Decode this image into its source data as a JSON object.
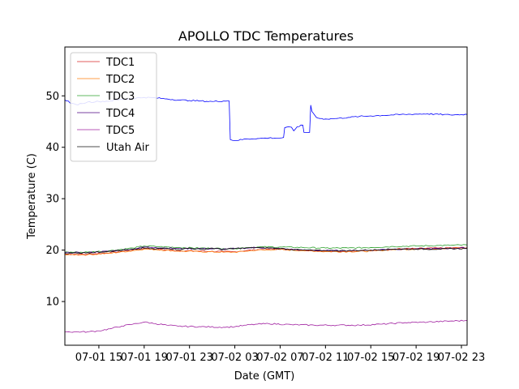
{
  "chart_data": {
    "type": "line",
    "title": "APOLLO TDC Temperatures",
    "xlabel": "Date (GMT)",
    "ylabel": "Temperature (C)",
    "xlim_hours": [
      12.0,
      47.5
    ],
    "ylim": [
      1.5,
      59.5
    ],
    "grid": false,
    "legend_position": "top-left",
    "x_ticks": [
      {
        "hours": 15,
        "label": "07-01 15"
      },
      {
        "hours": 19,
        "label": "07-01 19"
      },
      {
        "hours": 23,
        "label": "07-01 23"
      },
      {
        "hours": 27,
        "label": "07-02 03"
      },
      {
        "hours": 31,
        "label": "07-02 07"
      },
      {
        "hours": 35,
        "label": "07-02 11"
      },
      {
        "hours": 39,
        "label": "07-02 15"
      },
      {
        "hours": 43,
        "label": "07-02 19"
      },
      {
        "hours": 47,
        "label": "07-02 23"
      }
    ],
    "y_ticks": [
      {
        "value": 10,
        "label": "10"
      },
      {
        "value": 20,
        "label": "20"
      },
      {
        "value": 30,
        "label": "30"
      },
      {
        "value": 40,
        "label": "40"
      },
      {
        "value": 50,
        "label": "50"
      }
    ],
    "series": [
      {
        "name": "TDC1",
        "color": "#d62728",
        "points": [
          [
            12.0,
            19.2
          ],
          [
            14.0,
            19.2
          ],
          [
            16.0,
            19.5
          ],
          [
            18.0,
            20.0
          ],
          [
            19.0,
            20.3
          ],
          [
            20.0,
            20.2
          ],
          [
            22.0,
            19.9
          ],
          [
            24.0,
            19.8
          ],
          [
            26.0,
            19.7
          ],
          [
            27.0,
            19.7
          ],
          [
            28.0,
            19.9
          ],
          [
            29.0,
            20.1
          ],
          [
            31.0,
            20.2
          ],
          [
            33.0,
            20.0
          ],
          [
            35.0,
            19.8
          ],
          [
            37.0,
            19.8
          ],
          [
            39.0,
            19.9
          ],
          [
            41.0,
            20.2
          ],
          [
            43.0,
            20.3
          ],
          [
            45.0,
            20.4
          ],
          [
            47.5,
            20.5
          ]
        ]
      },
      {
        "name": "TDC2",
        "color": "#ff7f0e",
        "points": [
          [
            12.0,
            19.1
          ],
          [
            14.0,
            19.1
          ],
          [
            16.0,
            19.4
          ],
          [
            18.0,
            19.9
          ],
          [
            19.0,
            20.2
          ],
          [
            20.0,
            20.1
          ],
          [
            22.0,
            19.8
          ],
          [
            24.0,
            19.7
          ],
          [
            26.0,
            19.6
          ],
          [
            27.0,
            19.6
          ],
          [
            28.0,
            19.8
          ],
          [
            29.0,
            20.0
          ],
          [
            31.0,
            20.1
          ],
          [
            33.0,
            19.9
          ],
          [
            35.0,
            19.7
          ],
          [
            37.0,
            19.7
          ],
          [
            39.0,
            19.8
          ],
          [
            41.0,
            20.1
          ],
          [
            43.0,
            20.2
          ],
          [
            45.0,
            20.3
          ],
          [
            47.5,
            20.4
          ]
        ]
      },
      {
        "name": "TDC3",
        "color": "#2ca02c",
        "points": [
          [
            12.0,
            19.6
          ],
          [
            14.0,
            19.6
          ],
          [
            16.0,
            19.9
          ],
          [
            18.0,
            20.4
          ],
          [
            19.0,
            20.8
          ],
          [
            20.0,
            20.7
          ],
          [
            22.0,
            20.5
          ],
          [
            24.0,
            20.4
          ],
          [
            26.0,
            20.3
          ],
          [
            27.0,
            20.3
          ],
          [
            28.0,
            20.5
          ],
          [
            29.0,
            20.6
          ],
          [
            31.0,
            20.6
          ],
          [
            33.0,
            20.5
          ],
          [
            35.0,
            20.4
          ],
          [
            37.0,
            20.4
          ],
          [
            39.0,
            20.5
          ],
          [
            41.0,
            20.7
          ],
          [
            43.0,
            20.8
          ],
          [
            45.0,
            20.9
          ],
          [
            47.5,
            21.0
          ]
        ]
      },
      {
        "name": "TDC4",
        "color": "#4b0082",
        "points": [
          [
            12.0,
            19.5
          ],
          [
            14.0,
            19.5
          ],
          [
            16.0,
            19.8
          ],
          [
            18.0,
            20.2
          ],
          [
            19.0,
            20.6
          ],
          [
            20.0,
            20.5
          ],
          [
            22.0,
            20.3
          ],
          [
            24.0,
            20.3
          ],
          [
            26.0,
            20.2
          ],
          [
            27.0,
            20.3
          ],
          [
            28.0,
            20.4
          ],
          [
            29.0,
            20.5
          ],
          [
            31.0,
            20.3
          ],
          [
            33.0,
            20.0
          ],
          [
            35.0,
            19.9
          ],
          [
            37.0,
            19.9
          ],
          [
            39.0,
            20.0
          ],
          [
            41.0,
            20.2
          ],
          [
            43.0,
            20.2
          ],
          [
            45.0,
            20.3
          ],
          [
            47.5,
            20.4
          ]
        ]
      },
      {
        "name": "TDC5",
        "color": "#a020a0",
        "points": [
          [
            12.0,
            4.1
          ],
          [
            14.0,
            4.1
          ],
          [
            15.0,
            4.3
          ],
          [
            16.0,
            4.7
          ],
          [
            17.0,
            5.2
          ],
          [
            18.0,
            5.6
          ],
          [
            19.0,
            6.0
          ],
          [
            20.0,
            5.7
          ],
          [
            21.0,
            5.4
          ],
          [
            22.0,
            5.2
          ],
          [
            24.0,
            5.1
          ],
          [
            26.0,
            5.0
          ],
          [
            27.0,
            5.1
          ],
          [
            28.0,
            5.4
          ],
          [
            29.0,
            5.6
          ],
          [
            30.0,
            5.7
          ],
          [
            32.0,
            5.5
          ],
          [
            34.0,
            5.4
          ],
          [
            36.0,
            5.4
          ],
          [
            38.0,
            5.4
          ],
          [
            40.0,
            5.6
          ],
          [
            42.0,
            5.9
          ],
          [
            44.0,
            6.0
          ],
          [
            46.0,
            6.2
          ],
          [
            47.5,
            6.3
          ]
        ]
      },
      {
        "name": "Utah Air",
        "color": "#111111",
        "points": [
          [
            12.0,
            19.4
          ],
          [
            14.0,
            19.5
          ],
          [
            16.0,
            19.8
          ],
          [
            18.0,
            20.1
          ],
          [
            19.0,
            20.4
          ],
          [
            20.0,
            20.2
          ],
          [
            21.0,
            20.4
          ],
          [
            22.0,
            20.1
          ],
          [
            23.0,
            20.4
          ],
          [
            24.0,
            20.1
          ],
          [
            25.0,
            20.4
          ],
          [
            26.0,
            20.1
          ],
          [
            27.0,
            20.3
          ],
          [
            28.0,
            20.4
          ],
          [
            29.0,
            20.5
          ],
          [
            31.0,
            20.3
          ],
          [
            33.0,
            20.0
          ],
          [
            35.0,
            19.9
          ],
          [
            37.0,
            19.9
          ],
          [
            39.0,
            20.0
          ],
          [
            41.0,
            20.2
          ],
          [
            43.0,
            20.2
          ],
          [
            45.0,
            20.2
          ],
          [
            47.5,
            20.3
          ]
        ]
      },
      {
        "name": "Blue (unlabeled)",
        "color": "#0000ff",
        "points": [
          [
            12.0,
            49.2
          ],
          [
            12.3,
            49.0
          ],
          [
            12.5,
            48.5
          ],
          [
            13.0,
            48.3
          ],
          [
            13.5,
            48.5
          ],
          [
            14.0,
            48.8
          ],
          [
            15.0,
            48.9
          ],
          [
            16.0,
            49.0
          ],
          [
            17.0,
            49.3
          ],
          [
            18.0,
            49.5
          ],
          [
            19.0,
            49.7
          ],
          [
            20.0,
            49.6
          ],
          [
            21.0,
            49.4
          ],
          [
            22.0,
            49.2
          ],
          [
            23.0,
            49.1
          ],
          [
            24.0,
            49.0
          ],
          [
            25.0,
            48.9
          ],
          [
            26.0,
            49.0
          ],
          [
            26.5,
            49.0
          ],
          [
            26.6,
            41.5
          ],
          [
            27.0,
            41.3
          ],
          [
            28.0,
            41.6
          ],
          [
            29.0,
            41.7
          ],
          [
            30.0,
            41.8
          ],
          [
            31.0,
            41.8
          ],
          [
            31.3,
            41.9
          ],
          [
            31.4,
            43.8
          ],
          [
            32.0,
            43.9
          ],
          [
            32.2,
            43.2
          ],
          [
            32.5,
            44.0
          ],
          [
            33.0,
            44.3
          ],
          [
            33.1,
            42.9
          ],
          [
            33.6,
            42.9
          ],
          [
            33.7,
            48.2
          ],
          [
            33.8,
            47.0
          ],
          [
            34.0,
            46.4
          ],
          [
            34.2,
            45.8
          ],
          [
            34.5,
            45.6
          ],
          [
            35.0,
            45.5
          ],
          [
            36.0,
            45.6
          ],
          [
            37.0,
            45.8
          ],
          [
            38.0,
            46.0
          ],
          [
            39.0,
            46.1
          ],
          [
            40.0,
            46.2
          ],
          [
            42.0,
            46.4
          ],
          [
            44.0,
            46.5
          ],
          [
            46.0,
            46.3
          ],
          [
            47.5,
            46.4
          ]
        ]
      }
    ],
    "legend_series": [
      "TDC1",
      "TDC2",
      "TDC3",
      "TDC4",
      "TDC5",
      "Utah Air"
    ]
  }
}
